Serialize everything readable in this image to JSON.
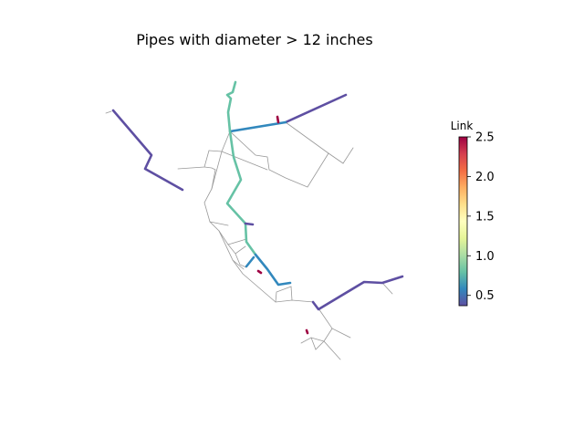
{
  "title": "Pipes with diameter > 12 inches",
  "colorbar": {
    "label": "Link",
    "ticks": [
      "0.5",
      "1.0",
      "1.5",
      "2.0",
      "2.5"
    ],
    "range": [
      0.37,
      2.5
    ],
    "colormap": "Spectral_r"
  },
  "network": {
    "background_pipe_color": "#999999",
    "highlight_colors": {
      "low": "#5e4fa2",
      "blue": "#3288bd",
      "teal": "#66c2a5",
      "high": "#9e0142"
    }
  }
}
